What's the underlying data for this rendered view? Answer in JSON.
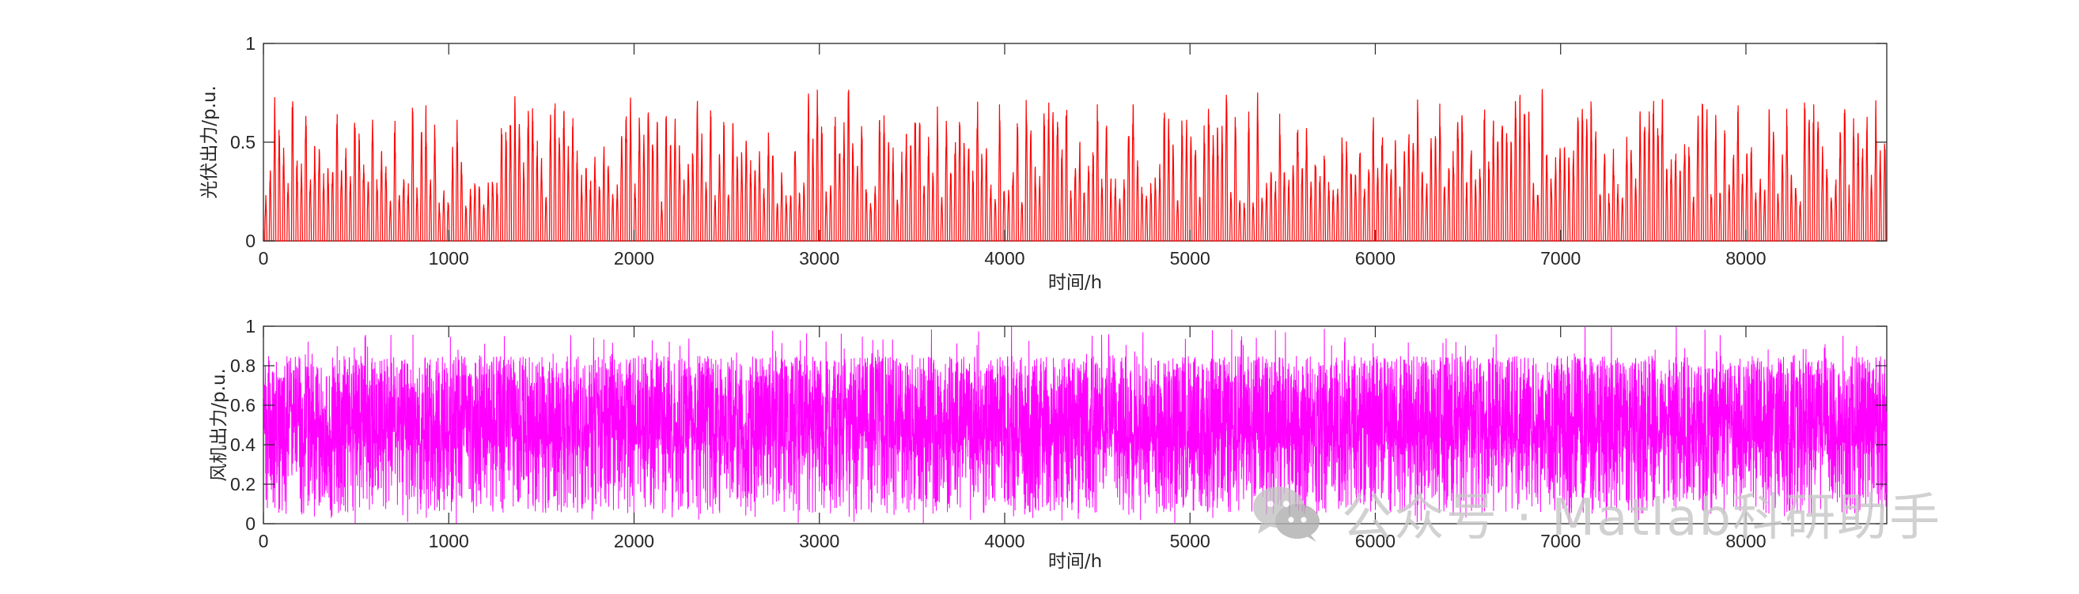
{
  "watermark": {
    "text": "公众号 · Matlab科研助手"
  },
  "chart_data": [
    {
      "type": "line",
      "name": "pv",
      "color": "#ff0000",
      "xlabel": "时间/h",
      "ylabel": "光伏出力/p.u.",
      "xlim": [
        0,
        8760
      ],
      "ylim": [
        0,
        1
      ],
      "xticks": [
        0,
        1000,
        2000,
        3000,
        4000,
        5000,
        6000,
        7000,
        8000
      ],
      "yticks": [
        0,
        0.5,
        1
      ],
      "ytick_labels": [
        "0",
        "0.5",
        "1"
      ],
      "grid": false,
      "series": [
        {
          "x_start": 1,
          "x_end": 8760,
          "x_step": 1,
          "pattern": "daily solar profile: zero at night, daytime peaks 0.2–0.8 p.u.",
          "daily_peak_min": 0.2,
          "daily_peak_max": 0.8
        }
      ]
    },
    {
      "type": "line",
      "name": "wind",
      "color": "#ff00ff",
      "xlabel": "时间/h",
      "ylabel": "风机出力/p.u.",
      "xlim": [
        0,
        8760
      ],
      "ylim": [
        0,
        1
      ],
      "xticks": [
        0,
        1000,
        2000,
        3000,
        4000,
        5000,
        6000,
        7000,
        8000
      ],
      "yticks": [
        0,
        0.2,
        0.4,
        0.6,
        0.8,
        1
      ],
      "ytick_labels": [
        "0",
        "0.2",
        "0.4",
        "0.6",
        "0.8",
        "1"
      ],
      "grid": false,
      "series": [
        {
          "x_start": 1,
          "x_end": 8760,
          "x_step": 1,
          "pattern": "hourly wind output oscillating 0–1 p.u., dense band 0.35–0.85",
          "band_low": 0.35,
          "band_high": 0.85
        }
      ]
    }
  ]
}
